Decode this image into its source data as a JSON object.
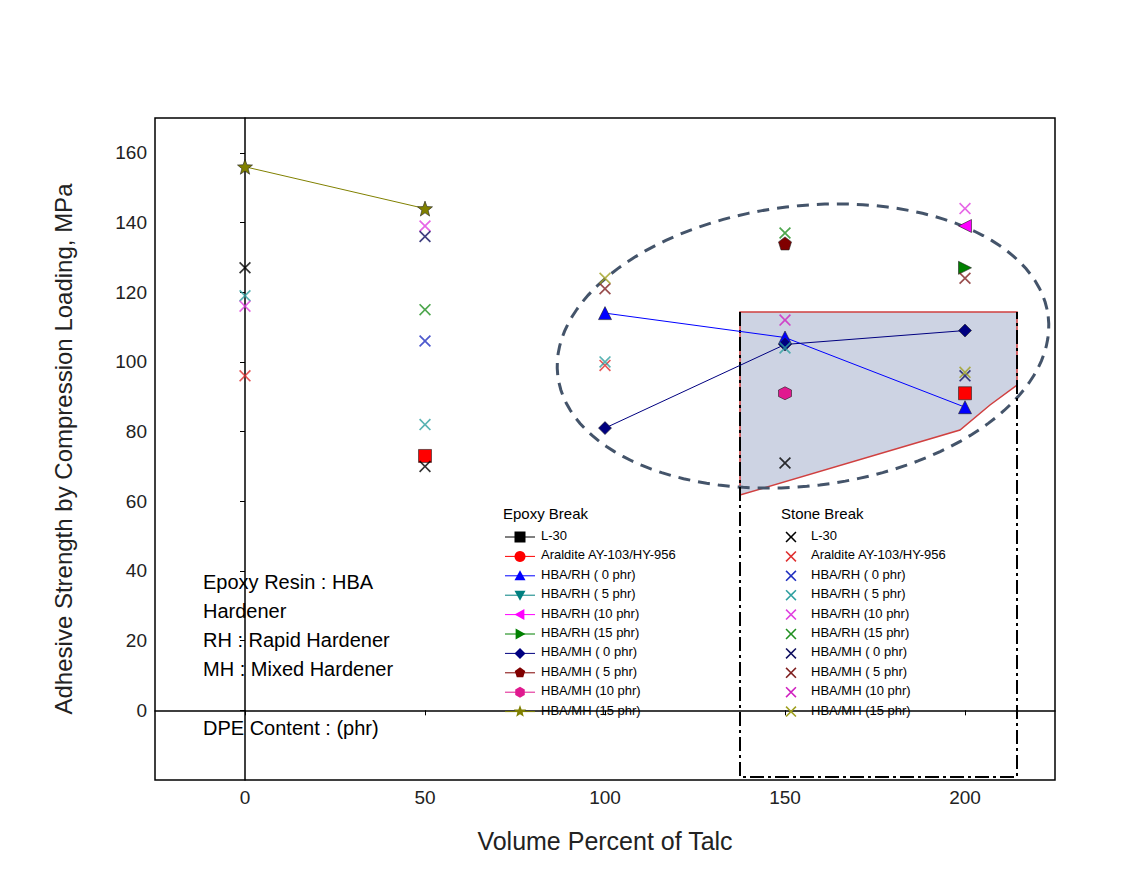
{
  "chart_data": {
    "type": "scatter",
    "x_label": "Volume Percent of Talc",
    "y_label": "Adhesive Strength by Compression Loading, MPa",
    "x": [
      0,
      50,
      100,
      150,
      200
    ],
    "xlim": [
      -25,
      225
    ],
    "xticks": [
      0,
      50,
      100,
      150,
      200
    ],
    "ylim": [
      -20,
      170
    ],
    "yticks": [
      0,
      20,
      40,
      60,
      80,
      100,
      120,
      140,
      160
    ],
    "grid": false,
    "annotations": [
      "Epoxy Resin : HBA",
      "Hardener",
      "RH : Rapid Hardener",
      "MH : Mixed Hardener",
      "DPE Content : (phr)"
    ],
    "groups": [
      {
        "title": "Epoxy Break",
        "series": [
          {
            "name": "L-30",
            "type": "line",
            "marker": "square",
            "color": "#000000",
            "values": [
              null,
              null,
              null,
              null,
              null
            ]
          },
          {
            "name": "Araldite AY-103/HY-956",
            "type": "line",
            "marker": "circle",
            "color": "#ff0000",
            "values": [
              null,
              73,
              null,
              null,
              91
            ]
          },
          {
            "name": "HBA/RH ( 0 phr)",
            "type": "line",
            "marker": "triangle",
            "color": "#0000ff",
            "values": [
              null,
              null,
              114,
              107,
              87
            ]
          },
          {
            "name": "HBA/RH ( 5 phr)",
            "type": "line",
            "marker": "triangle_down",
            "color": "#008080",
            "values": [
              null,
              null,
              null,
              null,
              null
            ]
          },
          {
            "name": "HBA/RH (10 phr)",
            "type": "line",
            "marker": "triangle_left",
            "color": "#ff00ff",
            "values": [
              null,
              null,
              null,
              null,
              139
            ]
          },
          {
            "name": "HBA/RH (15 phr)",
            "type": "line",
            "marker": "triangle_right",
            "color": "#008000",
            "values": [
              null,
              null,
              null,
              null,
              127
            ]
          },
          {
            "name": "HBA/MH ( 0 phr)",
            "type": "line",
            "marker": "diamond",
            "color": "#000080",
            "values": [
              null,
              null,
              81,
              105,
              109
            ]
          },
          {
            "name": "HBA/MH ( 5 phr)",
            "type": "line",
            "marker": "pentagon",
            "color": "#800000",
            "values": [
              null,
              null,
              null,
              134,
              null
            ]
          },
          {
            "name": "HBA/MH (10 phr)",
            "type": "line",
            "marker": "hexagon",
            "color": "#e0198f",
            "values": [
              null,
              null,
              null,
              91,
              null
            ]
          },
          {
            "name": "HBA/MH (15 phr)",
            "type": "line",
            "marker": "star",
            "color": "#808000",
            "values": [
              156,
              144,
              null,
              null,
              null
            ]
          }
        ]
      },
      {
        "title": "Stone Break",
        "series": [
          {
            "name": "L-30",
            "type": "scatter",
            "marker": "x",
            "color": "#000000",
            "values": [
              127,
              70,
              null,
              71,
              null
            ]
          },
          {
            "name": "Araldite AY-103/HY-956",
            "type": "scatter",
            "marker": "x",
            "color": "#e03030",
            "values": [
              96,
              null,
              99,
              null,
              null
            ]
          },
          {
            "name": "HBA/RH ( 0 phr)",
            "type": "scatter",
            "marker": "x",
            "color": "#2030c0",
            "values": [
              null,
              106,
              null,
              null,
              null
            ]
          },
          {
            "name": "HBA/RH ( 5 phr)",
            "type": "scatter",
            "marker": "x",
            "color": "#30a0a0",
            "values": [
              119,
              82,
              100,
              104,
              null
            ]
          },
          {
            "name": "HBA/RH (10 phr)",
            "type": "scatter",
            "marker": "x",
            "color": "#e040e0",
            "values": [
              116,
              139,
              null,
              null,
              144
            ]
          },
          {
            "name": "HBA/RH (15 phr)",
            "type": "scatter",
            "marker": "x",
            "color": "#209020",
            "values": [
              null,
              115,
              null,
              137,
              null
            ]
          },
          {
            "name": "HBA/MH ( 0 phr)",
            "type": "scatter",
            "marker": "x",
            "color": "#101060",
            "values": [
              null,
              136,
              null,
              null,
              96
            ]
          },
          {
            "name": "HBA/MH ( 5 phr)",
            "type": "scatter",
            "marker": "x",
            "color": "#802020",
            "values": [
              null,
              null,
              121,
              null,
              124
            ]
          },
          {
            "name": "HBA/MH (10 phr)",
            "type": "scatter",
            "marker": "x",
            "color": "#d020c0",
            "values": [
              null,
              null,
              null,
              112,
              null
            ]
          },
          {
            "name": "HBA/MH (15 phr)",
            "type": "scatter",
            "marker": "x",
            "color": "#a0a020",
            "values": [
              null,
              null,
              124,
              null,
              97
            ]
          }
        ]
      }
    ]
  }
}
